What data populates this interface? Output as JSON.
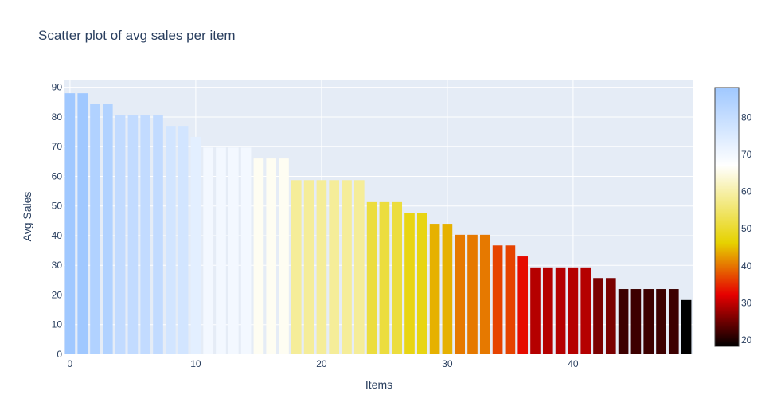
{
  "chart_data": {
    "type": "bar",
    "title": "Scatter plot of avg sales per item",
    "xlabel": "Items",
    "ylabel": "Avg Sales",
    "x": [
      0,
      1,
      2,
      3,
      4,
      5,
      6,
      7,
      8,
      9,
      10,
      11,
      12,
      13,
      14,
      15,
      16,
      17,
      18,
      19,
      20,
      21,
      22,
      23,
      24,
      25,
      26,
      27,
      28,
      29,
      30,
      31,
      32,
      33,
      34,
      35,
      36,
      37,
      38,
      39,
      40,
      41,
      42,
      43,
      44,
      45,
      46,
      47,
      48,
      49
    ],
    "values": [
      88,
      88,
      84.3,
      84.3,
      80.6,
      80.6,
      80.6,
      80.6,
      77,
      77,
      73.3,
      69.7,
      69.7,
      69.7,
      69.7,
      66,
      66,
      66,
      58.7,
      58.7,
      58.7,
      58.7,
      58.7,
      58.7,
      51.3,
      51.3,
      51.3,
      47.7,
      47.7,
      44,
      44,
      40.3,
      40.3,
      40.3,
      36.7,
      36.7,
      33,
      29.3,
      29.3,
      29.3,
      29.3,
      29.3,
      25.7,
      25.7,
      22,
      22,
      22,
      22,
      22,
      18.3
    ],
    "xlim": [
      -0.5,
      49.5
    ],
    "ylim": [
      0,
      92.6
    ],
    "x_ticks": [
      0,
      10,
      20,
      30,
      40
    ],
    "y_ticks": [
      0,
      10,
      20,
      30,
      40,
      50,
      60,
      70,
      80,
      90
    ],
    "grid": true,
    "colorbar": {
      "colorscale": "Blackbody (reversed)",
      "cmin": 18.3,
      "cmax": 88,
      "ticks": [
        20,
        30,
        40,
        50,
        60,
        70,
        80
      ],
      "stops": [
        [
          0.0,
          "#000000"
        ],
        [
          0.2,
          "#e60000"
        ],
        [
          0.4,
          "#e6d200"
        ],
        [
          0.7,
          "#ffffff"
        ],
        [
          1.0,
          "#a0c8ff"
        ]
      ]
    },
    "colors": {
      "plot_bg": "#e5ecf6",
      "grid": "#ffffff",
      "text": "#2a3f5f"
    }
  }
}
